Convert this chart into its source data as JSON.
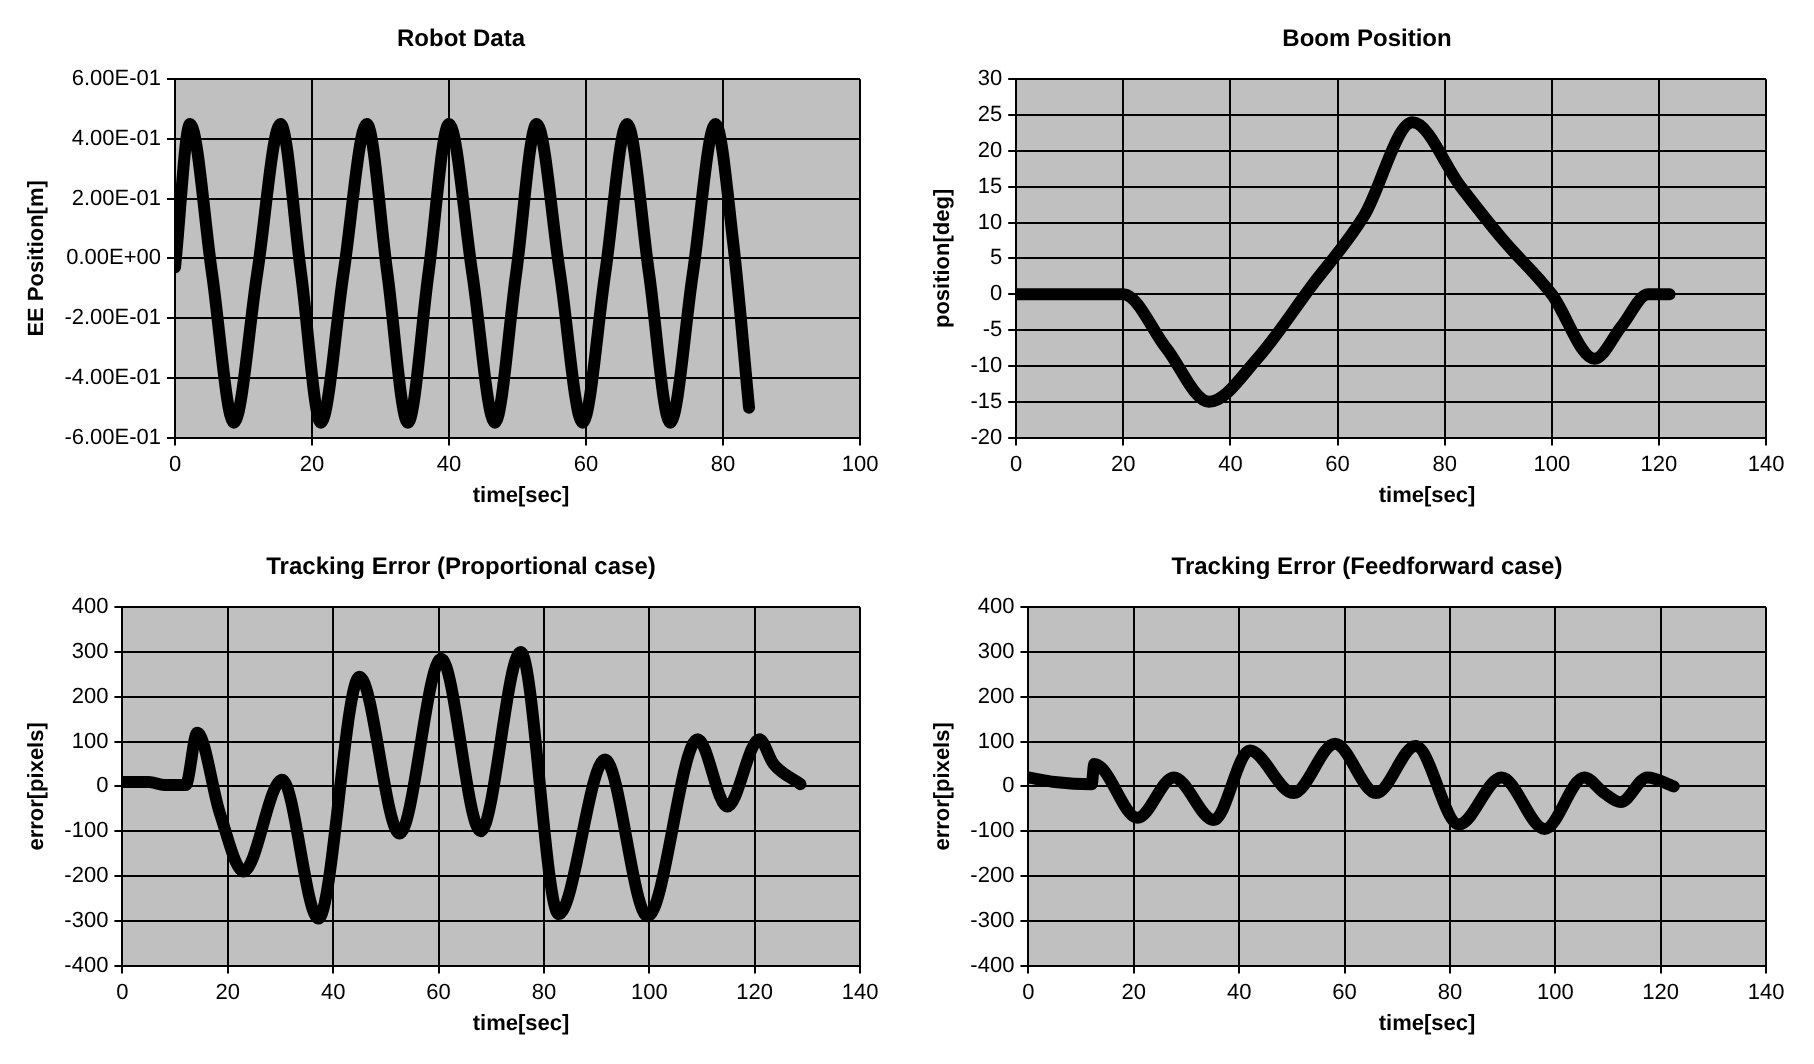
{
  "chart_data": [
    {
      "type": "line",
      "title": "Robot Data",
      "xlabel": "time[sec]",
      "ylabel": "EE Position[m]",
      "xlim": [
        0,
        100
      ],
      "xticks": [
        0,
        20,
        40,
        60,
        80,
        100
      ],
      "ylim": [
        -0.6,
        0.6
      ],
      "yticks": [
        {
          "value": -0.6,
          "label": "-6.00E-01"
        },
        {
          "value": -0.4,
          "label": "-4.00E-01"
        },
        {
          "value": -0.2,
          "label": "-2.00E-01"
        },
        {
          "value": 0,
          "label": "0.00E+00"
        },
        {
          "value": 0.2,
          "label": "2.00E-01"
        },
        {
          "value": 0.4,
          "label": "4.00E-01"
        },
        {
          "value": 0.6,
          "label": "6.00E-01"
        }
      ],
      "grid": true,
      "series": [
        {
          "color": "#000000",
          "x": [
            0,
            2.2,
            5.4,
            8.6,
            12.0,
            15.4,
            18.4,
            21.3,
            24.6,
            28,
            31,
            34,
            37,
            40,
            43.4,
            46.7,
            49.8,
            52.8,
            56.2,
            59.5,
            62.8,
            66,
            69.2,
            72.3,
            75.6,
            78.9,
            81.5,
            83.8
          ],
          "values": [
            -0.03,
            0.45,
            -0.05,
            -0.55,
            -0.05,
            0.45,
            -0.05,
            -0.55,
            -0.05,
            0.45,
            -0.05,
            -0.55,
            -0.05,
            0.45,
            -0.05,
            -0.55,
            -0.05,
            0.45,
            -0.05,
            -0.55,
            -0.05,
            0.45,
            -0.05,
            -0.55,
            -0.05,
            0.45,
            0.05,
            -0.5
          ]
        }
      ]
    },
    {
      "type": "line",
      "title": "Boom Position",
      "xlabel": "time[sec]",
      "ylabel": "position[deg]",
      "xlim": [
        0,
        140
      ],
      "xticks": [
        0,
        20,
        40,
        60,
        80,
        100,
        120,
        140
      ],
      "ylim": [
        -20,
        30
      ],
      "yticks": [
        -20,
        -15,
        -10,
        -5,
        0,
        5,
        10,
        15,
        20,
        25,
        30
      ],
      "grid": true,
      "series": [
        {
          "color": "#000000",
          "x": [
            0,
            20,
            28,
            36,
            45,
            55,
            65,
            74,
            83,
            91,
            100,
            108,
            113,
            118,
            122
          ],
          "values": [
            0,
            0,
            -7.5,
            -15,
            -9,
            1,
            11,
            24,
            15,
            7.5,
            0,
            -9,
            -4.5,
            0,
            0
          ]
        }
      ]
    },
    {
      "type": "line",
      "title": "Tracking Error  (Proportional case)",
      "xlabel": "time[sec]",
      "ylabel": "error[pixels]",
      "xlim": [
        0,
        140
      ],
      "xticks": [
        0,
        20,
        40,
        60,
        80,
        100,
        120,
        140
      ],
      "ylim": [
        -400,
        400
      ],
      "yticks": [
        -400,
        -300,
        -200,
        -100,
        0,
        100,
        200,
        300,
        400
      ],
      "grid": true,
      "series": [
        {
          "color": "#000000",
          "x": [
            0,
            5,
            8,
            12,
            14.2,
            18.5,
            23,
            30.3,
            37.2,
            45,
            52.6,
            60.5,
            68,
            75.6,
            82.8,
            91.6,
            99.7,
            109.2,
            114.8,
            120.9,
            123.6,
            128.7
          ],
          "values": [
            10,
            10,
            3,
            3,
            120,
            -60,
            -190,
            15,
            -295,
            245,
            -105,
            285,
            -100,
            300,
            -285,
            60,
            -290,
            105,
            -45,
            105,
            50,
            5
          ]
        }
      ]
    },
    {
      "type": "line",
      "title": "Tracking Error  (Feedforward case)",
      "xlabel": "time[sec]",
      "ylabel": "error[pixels]",
      "xlim": [
        0,
        140
      ],
      "xticks": [
        0,
        20,
        40,
        60,
        80,
        100,
        120,
        140
      ],
      "ylim": [
        -400,
        400
      ],
      "yticks": [
        -400,
        -300,
        -200,
        -100,
        0,
        100,
        200,
        300,
        400
      ],
      "grid": true,
      "series": [
        {
          "color": "#000000",
          "x": [
            0,
            5,
            12,
            12.5,
            14,
            20.7,
            27.6,
            35.2,
            42,
            50.3,
            58.2,
            66,
            73.5,
            81.7,
            89.8,
            98,
            105.5,
            109.3,
            112.4,
            117.5,
            122.5
          ],
          "values": [
            20,
            10,
            5,
            50,
            40,
            -70,
            20,
            -75,
            80,
            -15,
            95,
            -15,
            90,
            -85,
            20,
            -95,
            20,
            -15,
            -35,
            20,
            0
          ]
        }
      ]
    }
  ]
}
